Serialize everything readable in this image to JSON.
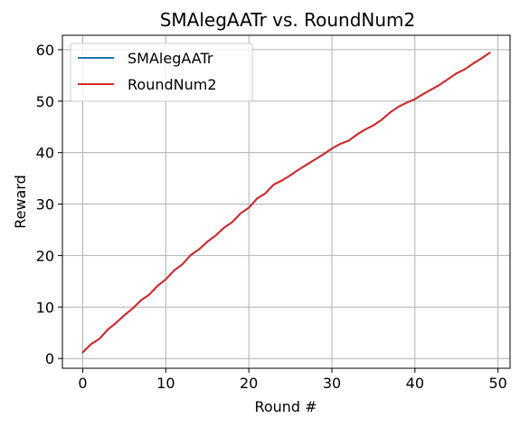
{
  "chart_data": {
    "type": "line",
    "title": "SMAlegAATr vs. RoundNum2",
    "xlabel": "Round #",
    "ylabel": "Reward",
    "xlim": [
      -2.45,
      51.45
    ],
    "ylim": [
      -1.9,
      62.8
    ],
    "xticks": [
      0,
      10,
      20,
      30,
      40,
      50
    ],
    "yticks": [
      0,
      10,
      20,
      30,
      40,
      50,
      60
    ],
    "grid": true,
    "legend_position": "top-left",
    "x": [
      0,
      1,
      2,
      3,
      4,
      5,
      6,
      7,
      8,
      9,
      10,
      11,
      12,
      13,
      14,
      15,
      16,
      17,
      18,
      19,
      20,
      21,
      22,
      23,
      24,
      25,
      26,
      27,
      28,
      29,
      30,
      31,
      32,
      33,
      34,
      35,
      36,
      37,
      38,
      39,
      40,
      41,
      42,
      43,
      44,
      45,
      46,
      47,
      48,
      49
    ],
    "series": [
      {
        "name": "SMAlegAATr",
        "color": "#1f77b4",
        "values": [
          1.2,
          2.8,
          3.8,
          5.6,
          6.9,
          8.4,
          9.7,
          11.3,
          12.4,
          14.1,
          15.4,
          17.1,
          18.3,
          20.1,
          21.2,
          22.7,
          23.9,
          25.4,
          26.5,
          28.2,
          29.3,
          31.1,
          32.1,
          33.8,
          34.6,
          35.6,
          36.7,
          37.7,
          38.7,
          39.7,
          40.8,
          41.7,
          42.3,
          43.5,
          44.5,
          45.3,
          46.4,
          47.8,
          48.9,
          49.7,
          50.4,
          51.4,
          52.3,
          53.2,
          54.3,
          55.4,
          56.2,
          57.3,
          58.3,
          59.4
        ]
      },
      {
        "name": "RoundNum2",
        "color": "#d62728",
        "values": [
          1.2,
          2.8,
          3.8,
          5.6,
          6.9,
          8.4,
          9.7,
          11.3,
          12.4,
          14.1,
          15.4,
          17.1,
          18.3,
          20.1,
          21.2,
          22.7,
          23.9,
          25.4,
          26.5,
          28.2,
          29.3,
          31.1,
          32.1,
          33.8,
          34.6,
          35.6,
          36.7,
          37.7,
          38.7,
          39.7,
          40.8,
          41.7,
          42.3,
          43.5,
          44.5,
          45.3,
          46.4,
          47.8,
          48.9,
          49.7,
          50.4,
          51.4,
          52.3,
          53.2,
          54.3,
          55.4,
          56.2,
          57.3,
          58.3,
          59.4
        ]
      }
    ]
  }
}
